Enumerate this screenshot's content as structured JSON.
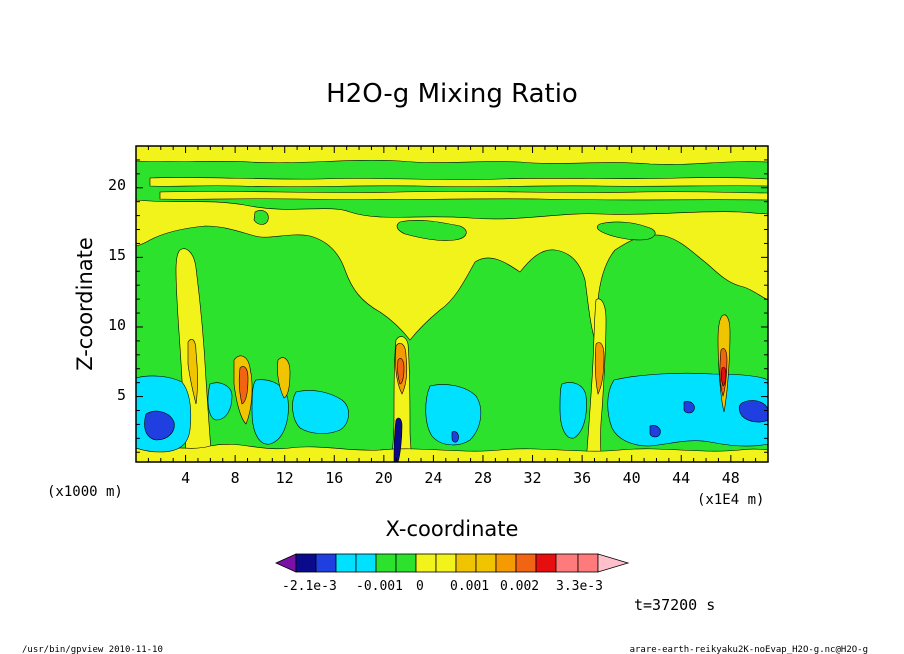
{
  "chart_data": {
    "type": "heatmap",
    "title": "H2O-g Mixing Ratio",
    "xlabel": "X-coordinate",
    "ylabel": "Z-coordinate",
    "x_unit_left": "(x1000 m)",
    "x_unit_right": "(x1E4 m)",
    "xlim": [
      0,
      51
    ],
    "ylim": [
      0.3,
      23
    ],
    "x_ticks": [
      "4",
      "8",
      "12",
      "16",
      "20",
      "24",
      "28",
      "32",
      "36",
      "40",
      "44",
      "48"
    ],
    "y_ticks": [
      "5",
      "10",
      "15",
      "20"
    ],
    "colorbar": {
      "colors": [
        "#7a10a8",
        "#0a0a8c",
        "#1f3fe0",
        "#00e0ff",
        "#2de22d",
        "#f3f31c",
        "#f0c400",
        "#f59a00",
        "#f06414",
        "#e60e0e",
        "#ff7a7a",
        "#ffc0cc"
      ],
      "labels": [
        "-2.1e-3",
        "-0.001",
        "0",
        "0.001",
        "0.002",
        "3.3e-3"
      ]
    },
    "time_label": "t=37200 s"
  },
  "footer": {
    "left": "/usr/bin/gpview  2010-11-10",
    "right": "arare-earth-reikyaku2K-noEvap_H2O-g.nc@H2O-g"
  }
}
